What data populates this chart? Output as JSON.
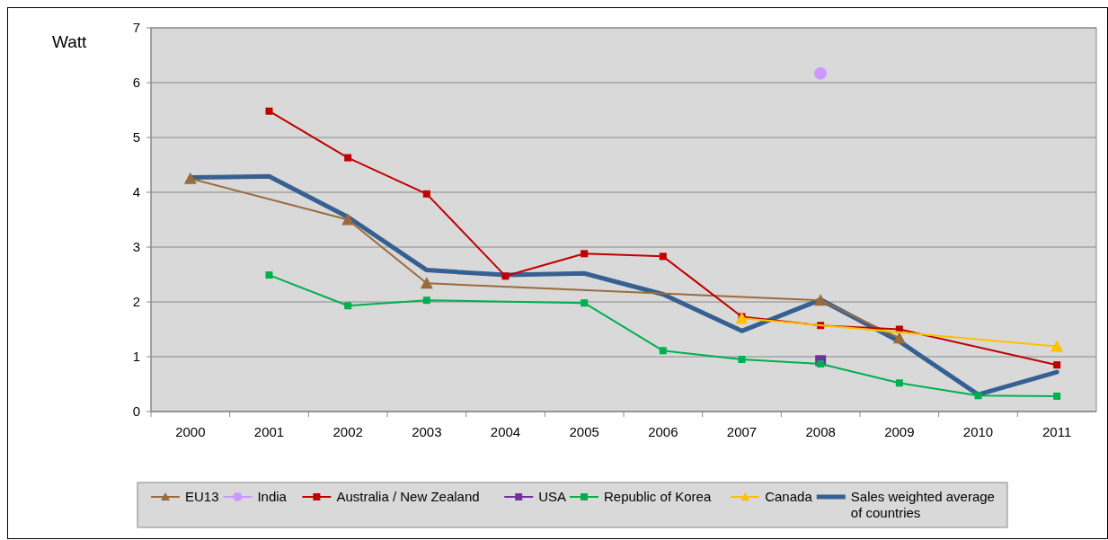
{
  "chart_data": {
    "type": "line",
    "ylabel": "Watt",
    "categories": [
      "2000",
      "2001",
      "2002",
      "2003",
      "2004",
      "2005",
      "2006",
      "2007",
      "2008",
      "2009",
      "2010",
      "2011"
    ],
    "ylim": [
      0,
      7
    ],
    "yticks": [
      0,
      1,
      2,
      3,
      4,
      5,
      6,
      7
    ],
    "grid": "y",
    "legend": "bottom",
    "series": [
      {
        "name": "EU13",
        "color": "#9c6b3c",
        "marker": "triangle",
        "values": [
          4.25,
          null,
          3.5,
          2.34,
          null,
          null,
          null,
          null,
          2.03,
          1.34,
          null,
          null
        ]
      },
      {
        "name": "India",
        "color": "#cc99ff",
        "marker": "circle",
        "values": [
          null,
          null,
          null,
          null,
          null,
          null,
          null,
          null,
          6.17,
          null,
          null,
          null
        ]
      },
      {
        "name": "Australia / New Zealand",
        "color": "#c00000",
        "marker": "square",
        "values": [
          null,
          5.48,
          4.63,
          3.97,
          2.47,
          2.88,
          2.83,
          1.73,
          1.57,
          1.5,
          null,
          0.85
        ]
      },
      {
        "name": "USA",
        "color": "#7030a0",
        "marker": "square",
        "values": [
          null,
          null,
          null,
          null,
          null,
          null,
          null,
          null,
          0.93,
          null,
          null,
          null
        ]
      },
      {
        "name": "Republic of Korea",
        "color": "#00b050",
        "marker": "square",
        "values": [
          null,
          2.49,
          1.93,
          2.03,
          null,
          1.98,
          1.11,
          0.95,
          0.87,
          0.52,
          0.29,
          0.28
        ]
      },
      {
        "name": "Canada",
        "color": "#ffc000",
        "marker": "triangle",
        "values": [
          null,
          null,
          null,
          null,
          null,
          null,
          null,
          1.7,
          null,
          null,
          null,
          1.19
        ]
      },
      {
        "name": "Sales weighted average of countries",
        "color": "#376092",
        "marker": "none",
        "values": [
          4.27,
          4.29,
          3.55,
          2.58,
          2.49,
          2.52,
          2.14,
          1.47,
          2.04,
          1.28,
          0.31,
          0.72
        ]
      }
    ]
  }
}
